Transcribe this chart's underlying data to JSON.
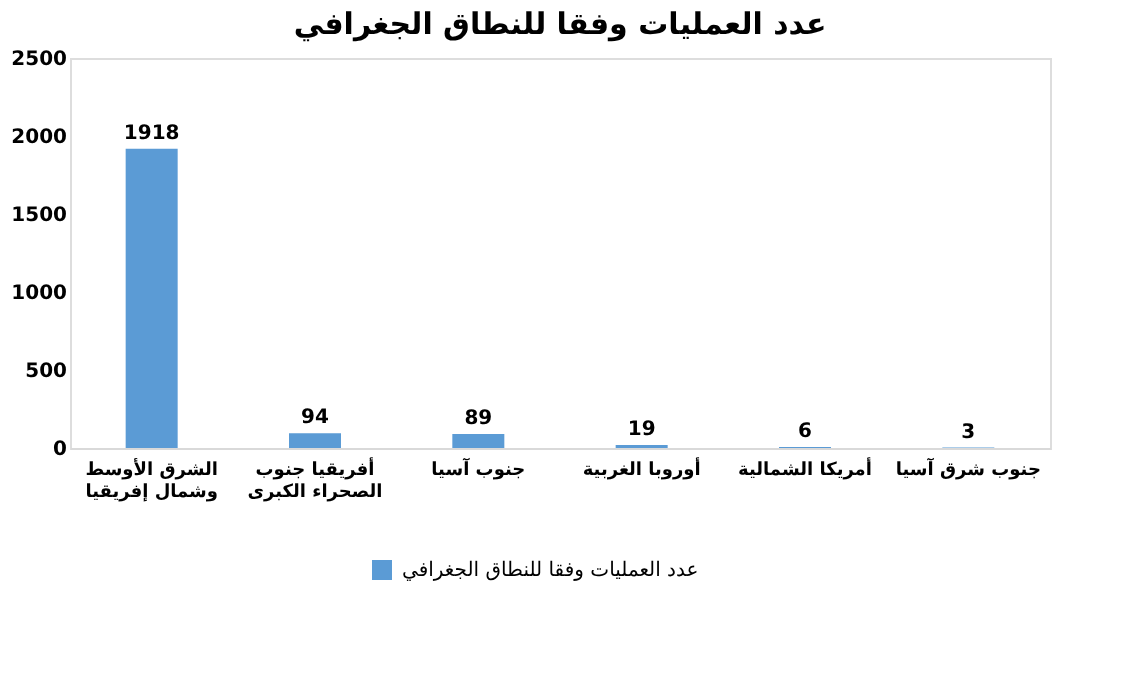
{
  "chart_data": {
    "type": "bar",
    "title": "عدد العمليات وفقا للنطاق الجغرافي",
    "categories": [
      "الشرق الأوسط وشمال إفريقيا",
      "أفريقيا جنوب الصحراء الكبرى",
      "جنوب آسيا",
      "أوروبا الغربية",
      "أمريكا الشمالية",
      "جنوب شرق آسيا"
    ],
    "series": [
      {
        "name": "عدد العمليات وفقا للنطاق الجغرافي",
        "color": "#5b9bd5",
        "values": [
          1918,
          94,
          89,
          19,
          6,
          3
        ]
      }
    ],
    "ylim": [
      0,
      2500
    ],
    "yticks": [
      0,
      500,
      1000,
      1500,
      2000,
      2500
    ],
    "grid": false,
    "legend": "bottom",
    "data_labels": true
  }
}
